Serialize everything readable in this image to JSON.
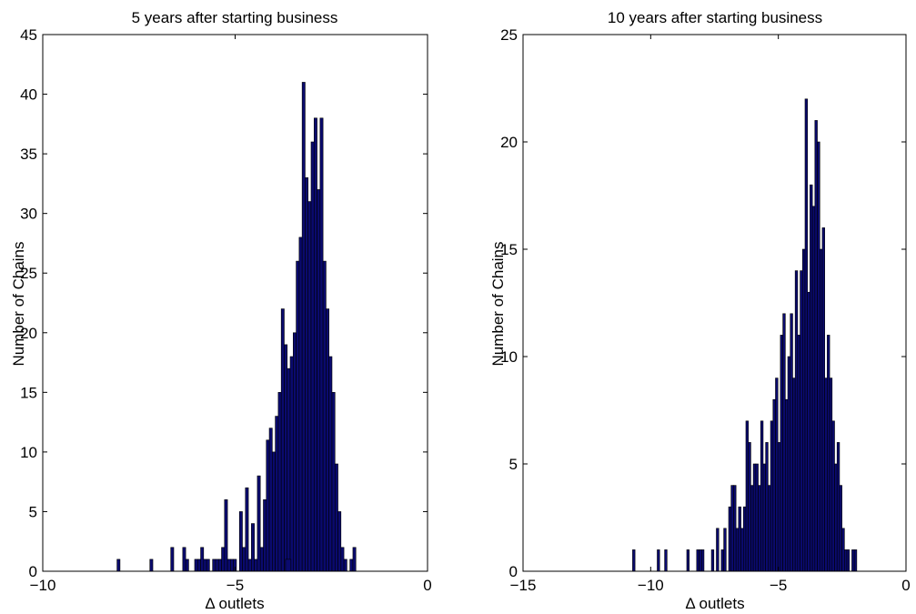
{
  "chart_data": [
    {
      "type": "bar",
      "title": "5 years after starting business",
      "xlabel": "Δ outlets",
      "ylabel": "Number of Chains",
      "xlim": [
        -10,
        0
      ],
      "ylim": [
        0,
        45
      ],
      "xticks": [
        "−10",
        "−5",
        "0"
      ],
      "yticks": [
        "0",
        "5",
        "10",
        "15",
        "20",
        "25",
        "30",
        "35",
        "40",
        "45"
      ],
      "xtick_values": [
        -10,
        -5,
        0
      ],
      "ytick_values": [
        0,
        5,
        10,
        15,
        20,
        25,
        30,
        35,
        40,
        45
      ],
      "grid": false,
      "bar_color": "#0a0a6e",
      "bin_start": -8.07,
      "bin_width": 0.0776,
      "counts": [
        1,
        0,
        0,
        0,
        0,
        0,
        0,
        0,
        0,
        0,
        0,
        1,
        0,
        0,
        0,
        0,
        0,
        0,
        2,
        0,
        0,
        0,
        2,
        1,
        0,
        0,
        1,
        1,
        2,
        1,
        1,
        0,
        1,
        1,
        1,
        2,
        6,
        1,
        1,
        1,
        0,
        5,
        2,
        7,
        1,
        4,
        1,
        8,
        2,
        6,
        11,
        12,
        10,
        13,
        15,
        22,
        19,
        17,
        18,
        20,
        26,
        28,
        41,
        33,
        31,
        36,
        38,
        32,
        38,
        26,
        22,
        18,
        15,
        9,
        5,
        2,
        1,
        0,
        1,
        2
      ],
      "bar_ranges": [
        [
          -3.69,
          -3.55
        ]
      ]
    },
    {
      "type": "bar",
      "title": "10 years after starting  business",
      "xlabel": "Δ outlets",
      "ylabel": "Number of Chains",
      "xlim": [
        -15,
        0
      ],
      "ylim": [
        0,
        25
      ],
      "xticks": [
        "−15",
        "−10",
        "−5",
        "0"
      ],
      "yticks": [
        "0",
        "5",
        "10",
        "15",
        "20",
        "25"
      ],
      "xtick_values": [
        -15,
        -10,
        -5,
        0
      ],
      "ytick_values": [
        0,
        5,
        10,
        15,
        20,
        25
      ],
      "grid": false,
      "bar_color": "#0a0a6e",
      "bin_start": -10.71,
      "bin_width": 0.0965,
      "counts": [
        1,
        0,
        0,
        0,
        0,
        0,
        0,
        0,
        0,
        0,
        1,
        0,
        0,
        1,
        0,
        0,
        0,
        0,
        0,
        0,
        0,
        0,
        1,
        0,
        0,
        0,
        1,
        1,
        1,
        0,
        0,
        0,
        1,
        0,
        2,
        0,
        1,
        2,
        0,
        3,
        4,
        4,
        2,
        3,
        2,
        3,
        7,
        6,
        4,
        5,
        5,
        4,
        7,
        5,
        6,
        4,
        7,
        8,
        9,
        6,
        11,
        12,
        8,
        10,
        12,
        9,
        14,
        11,
        14,
        15,
        22,
        13,
        18,
        17,
        21,
        20,
        15,
        16,
        9,
        11,
        9,
        7,
        5,
        6,
        4,
        2,
        1,
        1,
        0,
        1,
        1
      ],
      "bar_ranges": []
    }
  ]
}
